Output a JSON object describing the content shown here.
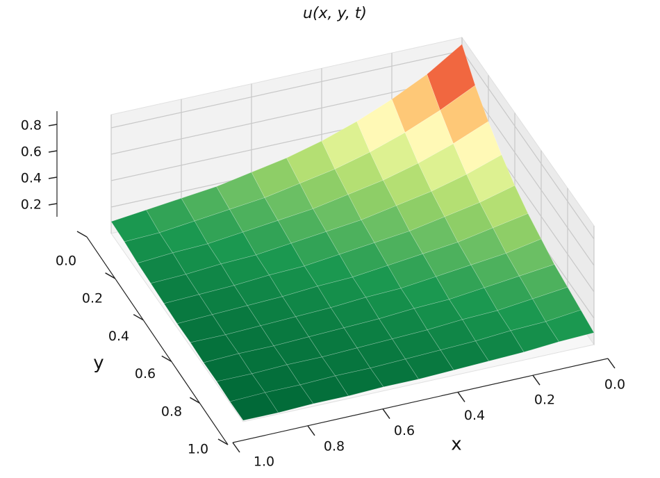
{
  "chart_data": {
    "type": "surface",
    "title": "u(x, y, t)",
    "x_label": "x",
    "y_label": "y",
    "colormap": "RdYlGn",
    "x": [
      0,
      0.1,
      0.2,
      0.3,
      0.4,
      0.5,
      0.6,
      0.7,
      0.8,
      0.9,
      1
    ],
    "y": [
      0,
      0.1,
      0.2,
      0.3,
      0.4,
      0.5,
      0.6,
      0.7,
      0.8,
      0.9,
      1
    ],
    "z": [
      [
        0.85,
        0.68,
        0.55,
        0.44,
        0.35,
        0.28,
        0.23,
        0.18,
        0.15,
        0.12,
        0.09
      ],
      [
        0.68,
        0.55,
        0.44,
        0.35,
        0.28,
        0.23,
        0.18,
        0.15,
        0.12,
        0.09,
        0.08
      ],
      [
        0.55,
        0.44,
        0.35,
        0.28,
        0.23,
        0.18,
        0.15,
        0.12,
        0.09,
        0.08,
        0.06
      ],
      [
        0.44,
        0.35,
        0.28,
        0.23,
        0.18,
        0.15,
        0.12,
        0.09,
        0.08,
        0.06,
        0.05
      ],
      [
        0.35,
        0.28,
        0.23,
        0.18,
        0.15,
        0.12,
        0.09,
        0.08,
        0.06,
        0.05,
        0.04
      ],
      [
        0.28,
        0.23,
        0.18,
        0.15,
        0.12,
        0.09,
        0.08,
        0.06,
        0.05,
        0.04,
        0.03
      ],
      [
        0.23,
        0.18,
        0.15,
        0.12,
        0.09,
        0.08,
        0.06,
        0.05,
        0.04,
        0.03,
        0.03
      ],
      [
        0.18,
        0.15,
        0.12,
        0.09,
        0.08,
        0.06,
        0.05,
        0.04,
        0.03,
        0.03,
        0.02
      ],
      [
        0.15,
        0.12,
        0.09,
        0.08,
        0.06,
        0.05,
        0.04,
        0.03,
        0.03,
        0.02,
        0.02
      ],
      [
        0.12,
        0.09,
        0.08,
        0.06,
        0.05,
        0.04,
        0.03,
        0.03,
        0.02,
        0.02,
        0.01
      ],
      [
        0.09,
        0.08,
        0.06,
        0.05,
        0.04,
        0.03,
        0.03,
        0.02,
        0.02,
        0.01,
        0.01
      ]
    ],
    "xlim": [
      0,
      1
    ],
    "ylim": [
      0,
      1
    ],
    "zlim": [
      0,
      0.9
    ],
    "xticks": [
      {
        "value": 0,
        "label": "0.0"
      },
      0.2,
      0.4,
      0.6,
      0.8,
      {
        "value": 1,
        "label": "1.0"
      }
    ],
    "yticks": [
      {
        "value": 0,
        "label": "0.0"
      },
      0.2,
      0.4,
      0.6,
      0.8,
      {
        "value": 1,
        "label": "1.0"
      }
    ],
    "zticks": [
      0.2,
      0.4,
      0.6,
      0.8
    ],
    "grid": true
  }
}
